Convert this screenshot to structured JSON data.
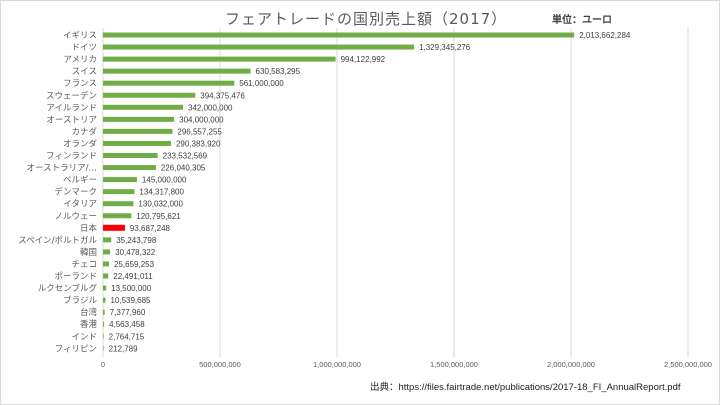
{
  "chart_data": {
    "type": "bar",
    "orientation": "horizontal",
    "title": "フェアトレードの国別売上額（2017）",
    "unit_label": "単位：ユーロ",
    "source": "出典：https://files.fairtrade.net/publications/2017-18_FI_AnnualReport.pdf",
    "categories": [
      "イギリス",
      "ドイツ",
      "アメリカ",
      "スイス",
      "フランス",
      "スウェーデン",
      "アイルランド",
      "オーストリア",
      "カナダ",
      "オランダ",
      "フィンランド",
      "オーストラリア/…",
      "ベルギー",
      "デンマーク",
      "イタリア",
      "ノルウェー",
      "日本",
      "スペイン/ポルトガル",
      "韓国",
      "チェコ",
      "ポーランド",
      "ルクセンブルグ",
      "ブラジル",
      "台湾",
      "香港",
      "インド",
      "フィリピン"
    ],
    "values": [
      2013662284,
      1329345276,
      994122992,
      630583295,
      561000000,
      394375476,
      342000000,
      304000000,
      296557255,
      290383920,
      233532569,
      226040305,
      145000000,
      134317800,
      130032000,
      120795621,
      93687248,
      35243798,
      30478322,
      25659253,
      22491011,
      13500000,
      10539685,
      7377960,
      4563458,
      2764715,
      212789
    ],
    "value_labels": [
      "2,013,662,284",
      "1,329,345,276",
      "994,122,992",
      "630,583,295",
      "561,000,000",
      "394,375,476",
      "342,000,000",
      "304,000,000",
      "296,557,255",
      "290,383,920",
      "233,532,569",
      "226,040,305",
      "145,000,000",
      "134,317,800",
      "130,032,000",
      "120,795,621",
      "93,687,248",
      "35,243,798",
      "30,478,322",
      "25,659,253",
      "22,491,011",
      "13,500,000",
      "10,539,685",
      "7,377,960",
      "4,563,458",
      "2,764,715",
      "212,789"
    ],
    "xlim": [
      0,
      2500000000
    ],
    "xticks": [
      0,
      500000000,
      1000000000,
      1500000000,
      2000000000,
      2500000000
    ],
    "xtick_labels": [
      "0",
      "500,000,000",
      "1,000,000,000",
      "1,500,000,000",
      "2,000,000,000",
      "2,500,000,000"
    ],
    "grid": "vertical",
    "bar_color": "#70ad47",
    "highlight": {
      "category": "日本",
      "color": "#ff0000"
    }
  }
}
